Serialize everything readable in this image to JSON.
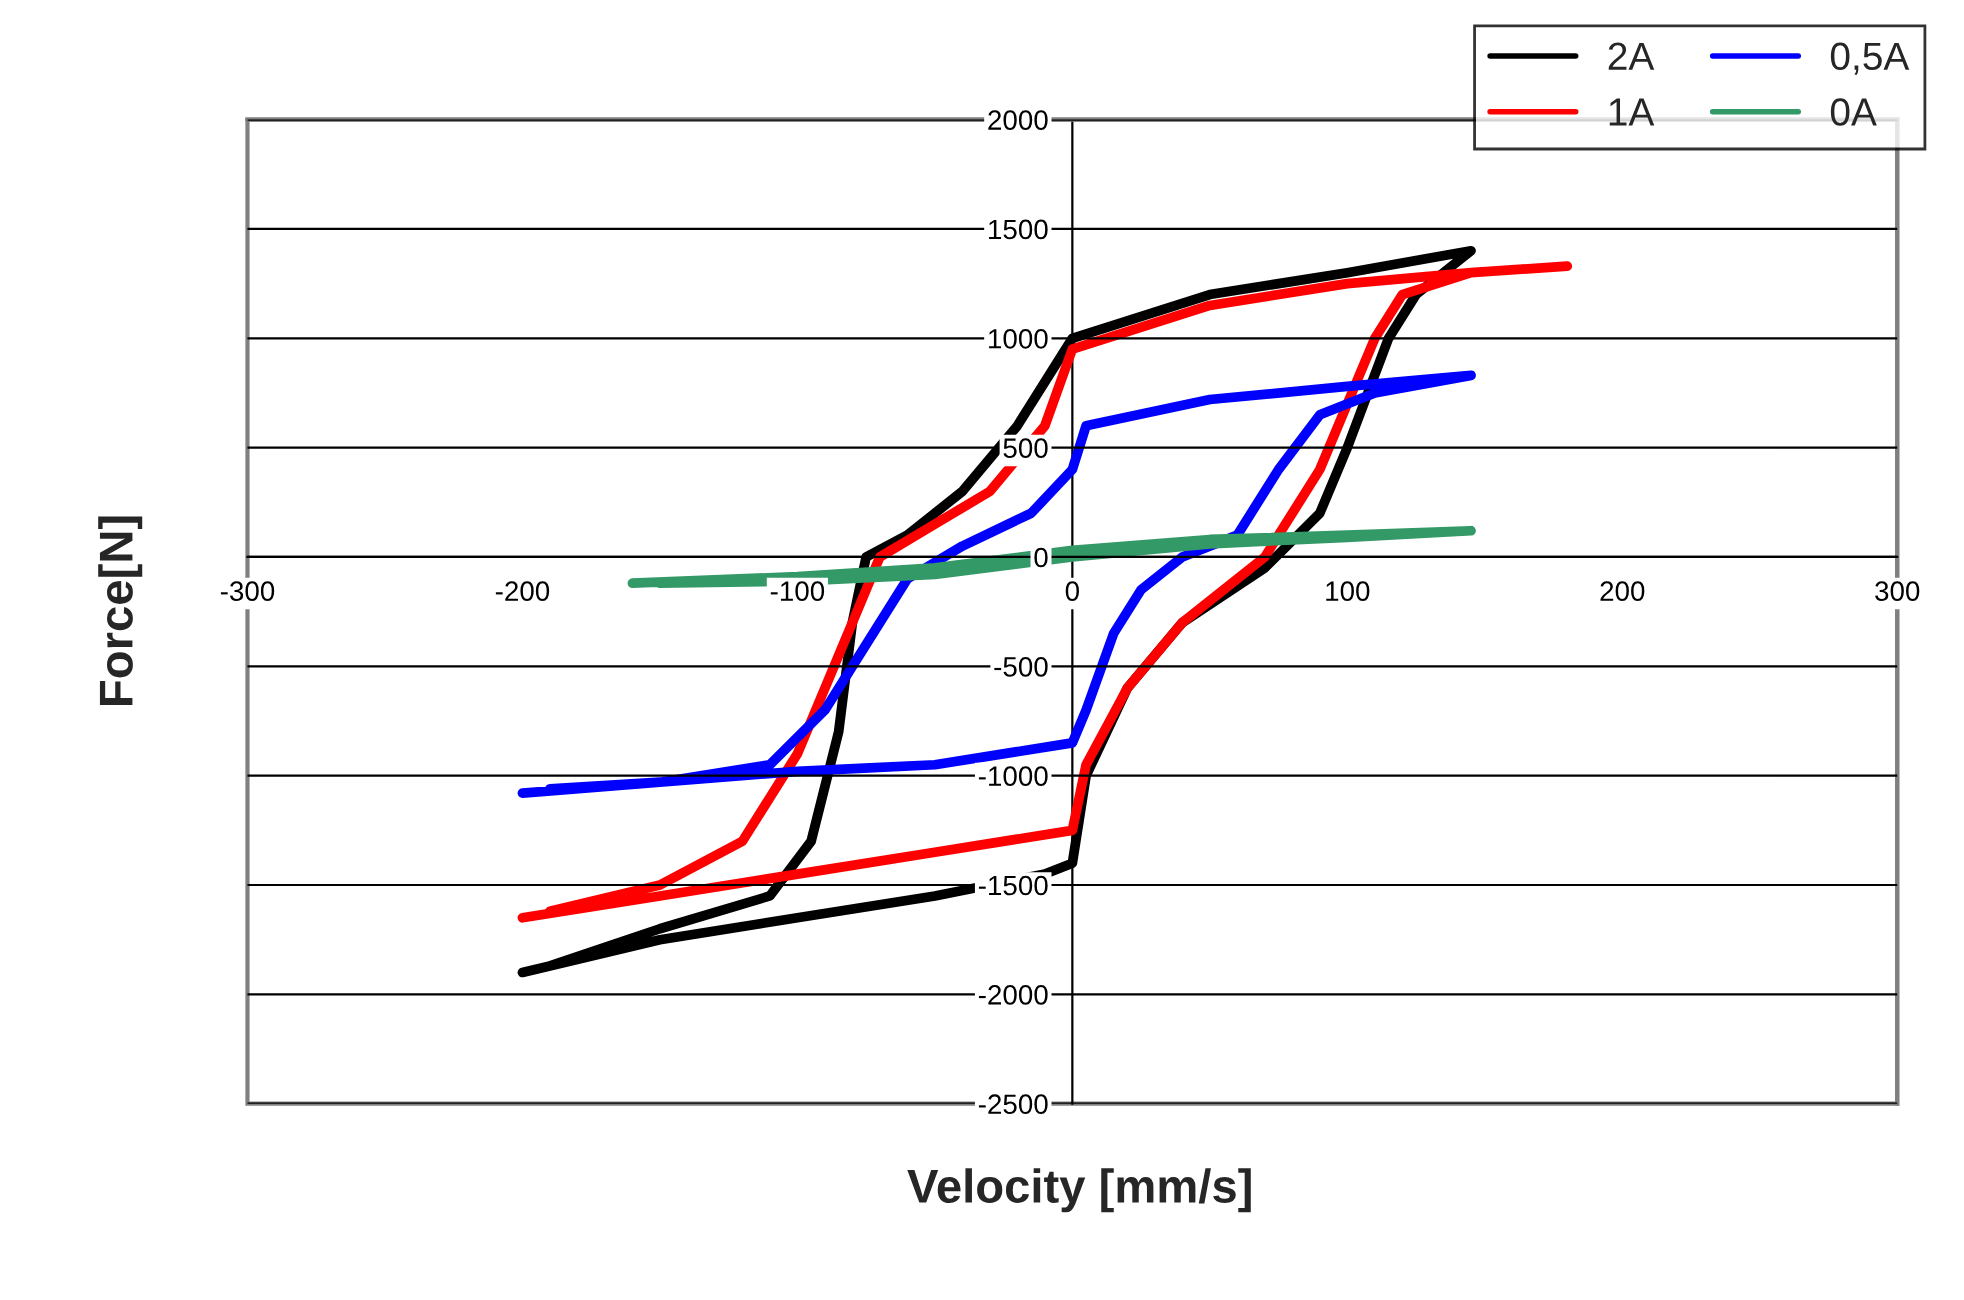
{
  "chart_data": {
    "type": "line",
    "xlabel": "Velocity [mm/s]",
    "ylabel": "Force[N]",
    "xlim": [
      -300,
      300
    ],
    "ylim": [
      -2500,
      2000
    ],
    "xticks": [
      -300,
      -200,
      -100,
      0,
      100,
      200,
      300
    ],
    "yticks": [
      -2500,
      -2000,
      -1500,
      -1000,
      -500,
      0,
      500,
      1000,
      1500,
      2000
    ],
    "grid": "y",
    "legend": "top right",
    "marker": "none",
    "line_style": "solid",
    "x": [
      -200,
      -150,
      -100,
      -50,
      -10,
      0,
      5,
      20,
      40,
      70,
      90,
      100,
      115,
      125,
      145,
      100,
      50,
      0,
      -5,
      -20,
      -40,
      -60,
      -75,
      -80,
      -85,
      -95,
      -110,
      -150,
      -190
    ],
    "series": [
      {
        "name": "2A",
        "color": "#000000",
        "values": [
          -1900,
          -1750,
          -1650,
          -1550,
          -1450,
          -1400,
          -1000,
          -600,
          -300,
          -50,
          200,
          500,
          1000,
          1200,
          1400,
          1300,
          1200,
          1000,
          900,
          600,
          300,
          100,
          0,
          -300,
          -800,
          -1300,
          -1550,
          -1700,
          -1870
        ]
      },
      {
        "name": "1A",
        "color": "#ff0000",
        "x": [
          -200,
          -150,
          -100,
          -50,
          0,
          5,
          20,
          40,
          70,
          90,
          100,
          110,
          120,
          145,
          180,
          145,
          100,
          50,
          0,
          -10,
          -30,
          -50,
          -70,
          -80,
          -100,
          -120,
          -150,
          -190
        ],
        "values": [
          -1650,
          -1550,
          -1450,
          -1350,
          -1250,
          -950,
          -600,
          -300,
          0,
          400,
          700,
          1000,
          1200,
          1300,
          1330,
          1300,
          1250,
          1150,
          950,
          600,
          300,
          150,
          0,
          -300,
          -900,
          -1300,
          -1500,
          -1620
        ]
      },
      {
        "name": "0,5A",
        "color": "#0000ff",
        "x": [
          -200,
          -150,
          -100,
          -50,
          0,
          5,
          15,
          25,
          40,
          60,
          75,
          90,
          110,
          145,
          100,
          50,
          5,
          0,
          -15,
          -40,
          -60,
          -70,
          -90,
          -110,
          -150,
          -190
        ],
        "values": [
          -1080,
          -1030,
          -980,
          -950,
          -850,
          -700,
          -350,
          -150,
          0,
          100,
          400,
          650,
          750,
          830,
          780,
          720,
          600,
          400,
          200,
          50,
          -100,
          -300,
          -700,
          -950,
          -1030,
          -1060
        ]
      },
      {
        "name": "0A",
        "color": "#339966",
        "x": [
          -160,
          -100,
          -50,
          0,
          50,
          100,
          145,
          100,
          50,
          0,
          -50,
          -100,
          -150
        ],
        "values": [
          -120,
          -90,
          -50,
          30,
          80,
          100,
          120,
          90,
          60,
          0,
          -80,
          -110,
          -120
        ]
      }
    ]
  }
}
